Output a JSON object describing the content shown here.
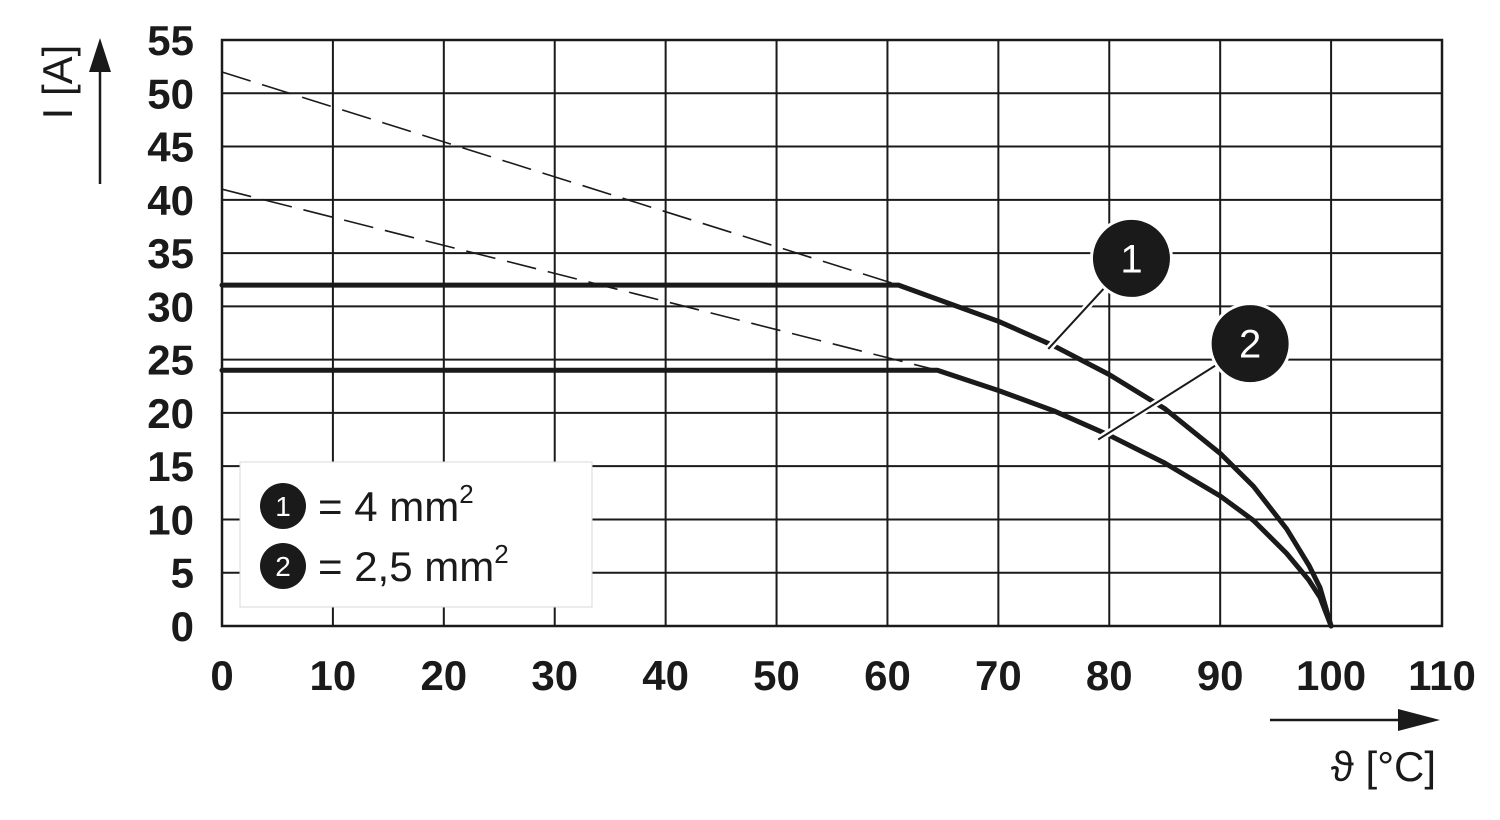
{
  "chart_data": {
    "type": "line",
    "title": "",
    "xlabel": "ϑ [°C]",
    "ylabel": "I [A]",
    "xlim": [
      0,
      110
    ],
    "ylim": [
      0,
      55
    ],
    "xticks": [
      0,
      10,
      20,
      30,
      40,
      50,
      60,
      70,
      80,
      90,
      100,
      110
    ],
    "yticks": [
      0,
      5,
      10,
      15,
      20,
      25,
      30,
      35,
      40,
      45,
      50,
      55
    ],
    "x_tick_labels": [
      "0",
      "10",
      "20",
      "30",
      "40",
      "50",
      "60",
      "70",
      "80",
      "90",
      "100",
      "110"
    ],
    "y_tick_labels": [
      "0",
      "5",
      "10",
      "15",
      "20",
      "25",
      "30",
      "35",
      "40",
      "45",
      "50",
      "55"
    ],
    "grid": true,
    "series": [
      {
        "name": "4 mm²",
        "marker_label": "1",
        "color": "#1a1a1a",
        "style": "solid",
        "x": [
          0,
          61,
          70,
          75,
          80,
          85,
          90,
          93,
          96,
          98,
          99,
          100
        ],
        "y": [
          32,
          32,
          28.6,
          26.3,
          23.6,
          20.4,
          16.2,
          13.1,
          9.1,
          5.7,
          3.6,
          0
        ]
      },
      {
        "name": "2,5 mm²",
        "marker_label": "2",
        "color": "#1a1a1a",
        "style": "solid",
        "x": [
          0,
          64.5,
          70,
          75,
          80,
          85,
          90,
          93,
          96,
          98,
          99,
          100
        ],
        "y": [
          24,
          24,
          22.1,
          20.2,
          17.9,
          15.3,
          12.2,
          9.9,
          6.8,
          4.3,
          2.7,
          0
        ]
      },
      {
        "name": "",
        "color": "#1a1a1a",
        "style": "dashed",
        "x": [
          0,
          61
        ],
        "y": [
          52,
          32
        ]
      },
      {
        "name": "",
        "color": "#1a1a1a",
        "style": "dashed",
        "x": [
          0,
          64.5
        ],
        "y": [
          41,
          24
        ]
      }
    ],
    "callouts": [
      {
        "label": "1",
        "x": 74.5,
        "y": 26,
        "badge_x": 82,
        "badge_y": 34.5
      },
      {
        "label": "2",
        "x": 79,
        "y": 17.5,
        "badge_x": 92.7,
        "badge_y": 26.5
      }
    ],
    "legend": {
      "placement": "bottom-left",
      "entries": [
        {
          "marker": "1",
          "text": "= 4 mm",
          "sup": "2"
        },
        {
          "marker": "2",
          "text": "= 2,5 mm",
          "sup": "2"
        }
      ]
    }
  }
}
